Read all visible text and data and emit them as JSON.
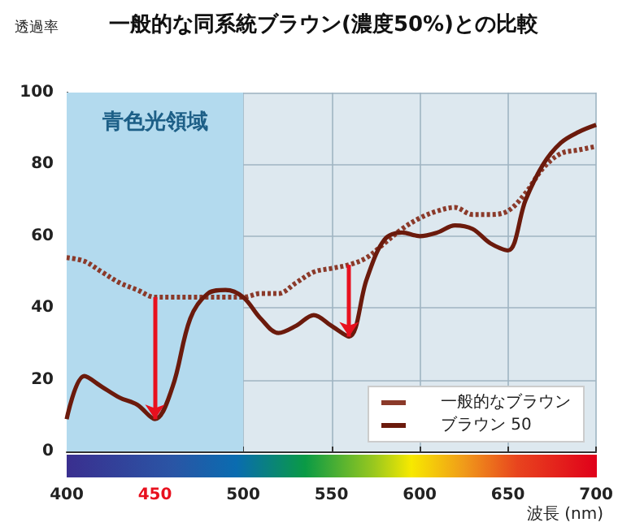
{
  "chart_data": {
    "type": "line",
    "title": "一般的な同系統ブラウン(濃度50%)との比較",
    "xlabel": "波長 (nm)",
    "ylabel": "透過率",
    "x": [
      400,
      410,
      420,
      430,
      440,
      450,
      460,
      470,
      480,
      490,
      500,
      510,
      520,
      530,
      540,
      550,
      560,
      570,
      580,
      590,
      600,
      610,
      620,
      630,
      640,
      650,
      660,
      670,
      680,
      690,
      700
    ],
    "series": [
      {
        "name": "一般的なブラウン",
        "color": "#8b3a2a",
        "line_style": "dotted",
        "values": [
          54,
          53,
          50,
          47,
          45,
          43,
          43,
          43,
          43,
          43,
          43,
          44,
          44,
          47,
          50,
          51,
          52,
          54,
          58,
          62,
          65,
          67,
          68,
          66,
          66,
          67,
          72,
          79,
          83,
          84,
          85
        ]
      },
      {
        "name": "ブラウン 50",
        "color": "#6b1a0c",
        "line_style": "solid",
        "values": [
          9,
          21,
          18,
          15,
          13,
          9,
          18,
          37,
          44,
          45,
          43,
          37,
          33,
          35,
          38,
          35,
          32,
          48,
          59,
          61,
          60,
          61,
          63,
          62,
          58,
          56,
          70,
          80,
          86,
          89,
          91
        ]
      }
    ],
    "xlim": [
      400,
      700
    ],
    "xticks": [
      400,
      450,
      500,
      550,
      600,
      650,
      700
    ],
    "ylim": [
      0,
      100
    ],
    "yticks": [
      0,
      20,
      40,
      60,
      80,
      100
    ],
    "bands": [
      {
        "axis": "x",
        "from": 400,
        "to": 500,
        "label": "青色光領域",
        "color": "#b3daee"
      }
    ],
    "grid": true,
    "legend": "bottom right",
    "marker": "none"
  }
}
